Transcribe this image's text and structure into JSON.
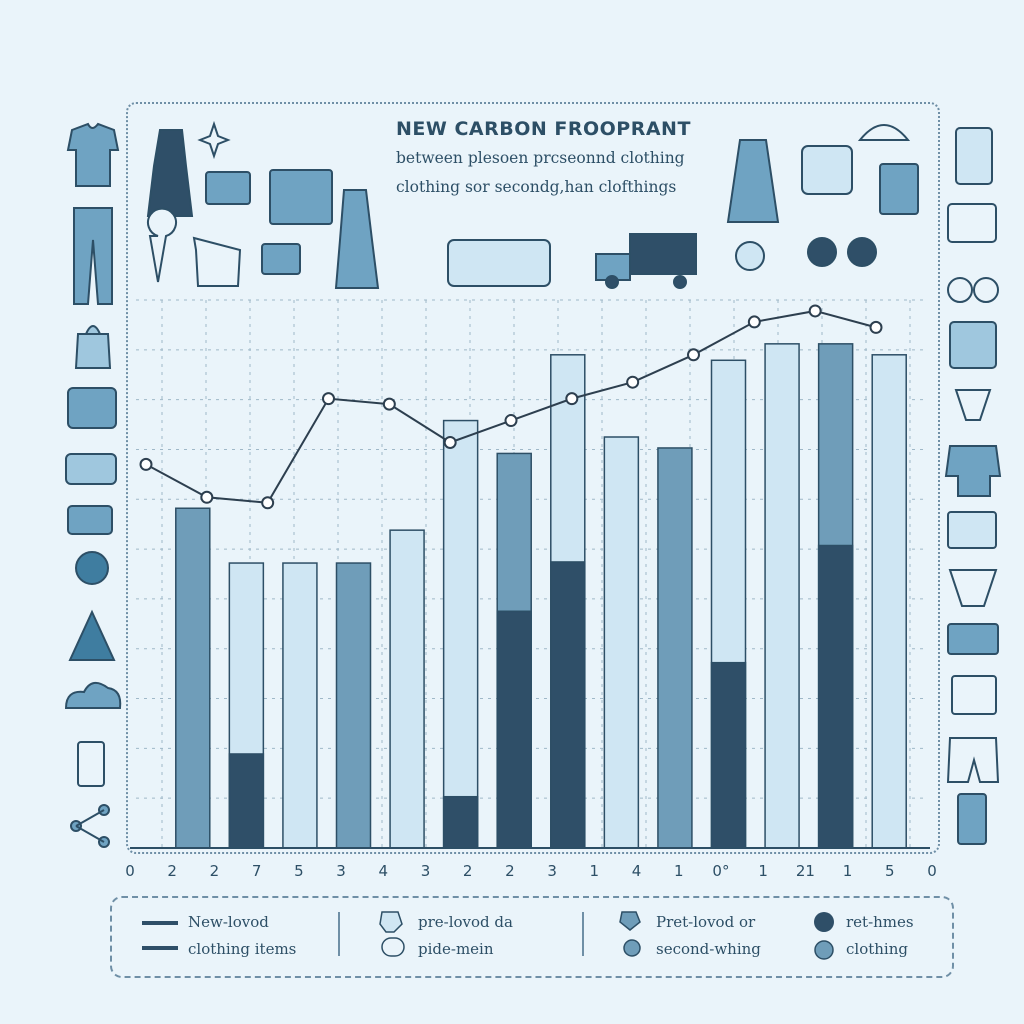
{
  "title": "NEW CARBON FROOPRANT",
  "subtitle_line1": "between plesoen prcseonnd clothing",
  "subtitle_line2": "clothing sor secondg,han clofthings",
  "chart_data": {
    "type": "bar",
    "x_tick_labels": [
      "0",
      "2",
      "2",
      "7",
      "5",
      "3",
      "4",
      "3",
      "2",
      "2",
      "3",
      "1",
      "4",
      "1",
      "0°",
      "1",
      "21",
      "1",
      "5",
      "0"
    ],
    "ylim": [
      0,
      100
    ],
    "bars": [
      {
        "total": 62,
        "dark_fraction": 0
      },
      {
        "total": 52,
        "dark_fraction": 0.33
      },
      {
        "total": 52,
        "dark_fraction": 0
      },
      {
        "total": 52,
        "dark_fraction": 0
      },
      {
        "total": 58,
        "dark_fraction": 0
      },
      {
        "total": 78,
        "dark_fraction": 0.12
      },
      {
        "total": 72,
        "dark_fraction": 0.6
      },
      {
        "total": 90,
        "dark_fraction": 0.58
      },
      {
        "total": 75,
        "dark_fraction": 0
      },
      {
        "total": 73,
        "dark_fraction": 0
      },
      {
        "total": 89,
        "dark_fraction": 0.38
      },
      {
        "total": 92,
        "dark_fraction": 0
      },
      {
        "total": 92,
        "dark_fraction": 0.6
      },
      {
        "total": 90,
        "dark_fraction": 0
      }
    ],
    "line_values": [
      70,
      64,
      63,
      82,
      81,
      74,
      78,
      82,
      85,
      90,
      96,
      98,
      95
    ],
    "colors": {
      "bar_mid": "#6f9db9",
      "bar_light": "#cfe6f3",
      "bar_dark": "#2f4f68",
      "line": "#2d3f4f",
      "grid": "#9fb8c8"
    }
  },
  "legend": {
    "items": [
      {
        "label": "New-lovod",
        "marker": "line-dark"
      },
      {
        "label": "clothing items",
        "marker": "line-dark"
      },
      {
        "label": "pre-lovod da",
        "marker": "pin-icon"
      },
      {
        "label": "pide-mein",
        "marker": "pill-light"
      },
      {
        "label": "Pret-lovod or",
        "marker": "pin-dark-icon"
      },
      {
        "label": "second-whing",
        "marker": "dot-mid"
      },
      {
        "label": "ret-hmes",
        "marker": "dot-dark"
      },
      {
        "label": "clothing",
        "marker": "dot-mid"
      }
    ]
  },
  "icons": {
    "left_column": [
      "tshirt-icon",
      "jeans-icon",
      "shopping-bag-icon",
      "folded-clothes-icon",
      "purse-icon",
      "tote-bag-icon",
      "globe-icon",
      "handbag-icon",
      "cloud-icon",
      "cup-icon",
      "share-icon"
    ],
    "right_column": [
      "jacket-icon",
      "shorts-icon",
      "glasses-icon",
      "skirt-icon",
      "scarf-icon",
      "sweater-icon",
      "denim-shorts-icon",
      "underwear-icon",
      "briefcase-icon",
      "knit-top-icon",
      "trousers-icon",
      "trash-icon"
    ],
    "top_row": [
      "dress-icon",
      "sparkle-icon",
      "hanger-icon",
      "bag-icon",
      "shorts-icon",
      "long-dress-icon",
      "map-pin-icon",
      "bus-icon",
      "truck-icon",
      "coat-icon",
      "knit-sweater-icon",
      "vest-icon",
      "sunglasses-icon",
      "knit-hat-icon"
    ]
  }
}
